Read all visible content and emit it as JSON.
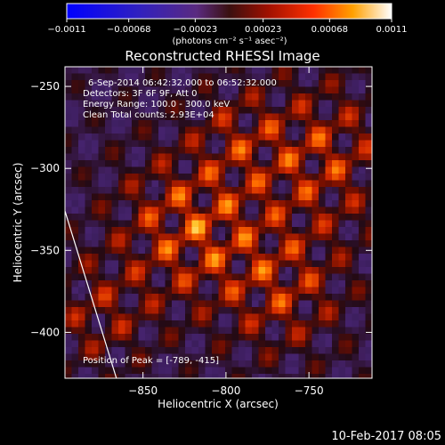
{
  "chart_data": {
    "type": "heatmap",
    "title": "Reconstructed RHESSI Image",
    "xlabel": "Heliocentric X (arcsec)",
    "ylabel": "Heliocentric Y (arcsec)",
    "xlim": [
      -897,
      -712
    ],
    "ylim": [
      -428,
      -238
    ],
    "x_ticks": [
      -850,
      -800,
      -750
    ],
    "x_tick_labels": [
      "−850",
      "−800",
      "−750"
    ],
    "y_ticks": [
      -250,
      -300,
      -350,
      -400
    ],
    "y_tick_labels": [
      "−250",
      "−300",
      "−350",
      "−400"
    ],
    "colorbar": {
      "min": -0.0011,
      "max": 0.0011,
      "ticks": [
        -0.0011,
        -0.00068,
        -0.00023,
        0.00023,
        0.00068,
        0.0011
      ],
      "tick_labels": [
        "−0.0011",
        "−0.00068",
        "−0.00023",
        "0.00023",
        "0.00068",
        "0.0011"
      ],
      "unit_label": "(photons cm⁻² s⁻¹ asec⁻²)"
    },
    "annotations": {
      "time_range": "6-Sep-2014 06:42:32.000 to 06:52:32.000",
      "detectors": "Detectors: 3F 6F 9F, Att 0",
      "energy": "Energy Range: 100.0 - 300.0 keV",
      "clean": "Clean    Total counts: 2.93E+04",
      "peak": "Position of Peak = [-789, -415]"
    },
    "limb_line": {
      "x": [
        -897,
        -866
      ],
      "y": [
        -326,
        -428
      ]
    },
    "peak_position": [
      -789,
      -415
    ],
    "grid": false
  },
  "footer": {
    "timestamp": "10-Feb-2017 08:05"
  }
}
